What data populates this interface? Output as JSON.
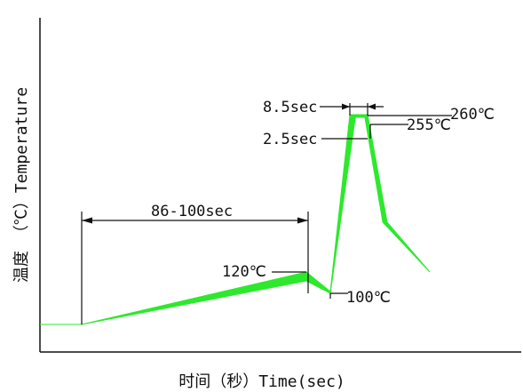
{
  "chart_data": {
    "type": "area",
    "xlabel": "时间（秒）Time(sec)",
    "ylabel": "温度 （℃）Temperature",
    "profile": {
      "band_color": "#2ee82e",
      "upper_edge": [
        {
          "t": 0,
          "temp": 25
        },
        {
          "t": 30,
          "temp": 25
        },
        {
          "t": 224,
          "temp": 120
        },
        {
          "t": 232,
          "temp": 100
        },
        {
          "t": 262,
          "temp": 260
        },
        {
          "t": 275,
          "temp": 260
        },
        {
          "t": 284,
          "temp": 180
        },
        {
          "t": 307,
          "temp": 140
        }
      ],
      "lower_edge": [
        {
          "t": 307,
          "temp": 140
        },
        {
          "t": 282,
          "temp": 180
        },
        {
          "t": 273,
          "temp": 255
        },
        {
          "t": 266,
          "temp": 255
        },
        {
          "t": 232,
          "temp": 98
        },
        {
          "t": 224,
          "temp": 110
        },
        {
          "t": 30,
          "temp": 25
        },
        {
          "t": 0,
          "temp": 25
        }
      ]
    },
    "annotations": {
      "preheat_duration": "86-100sec",
      "preheat_temp": "120℃",
      "valley_temp": "100℃",
      "peak_time_upper": "8.5sec",
      "peak_time_lower": "2.5sec",
      "peak_temp_upper": "260℃",
      "peak_temp_lower": "255℃"
    }
  }
}
